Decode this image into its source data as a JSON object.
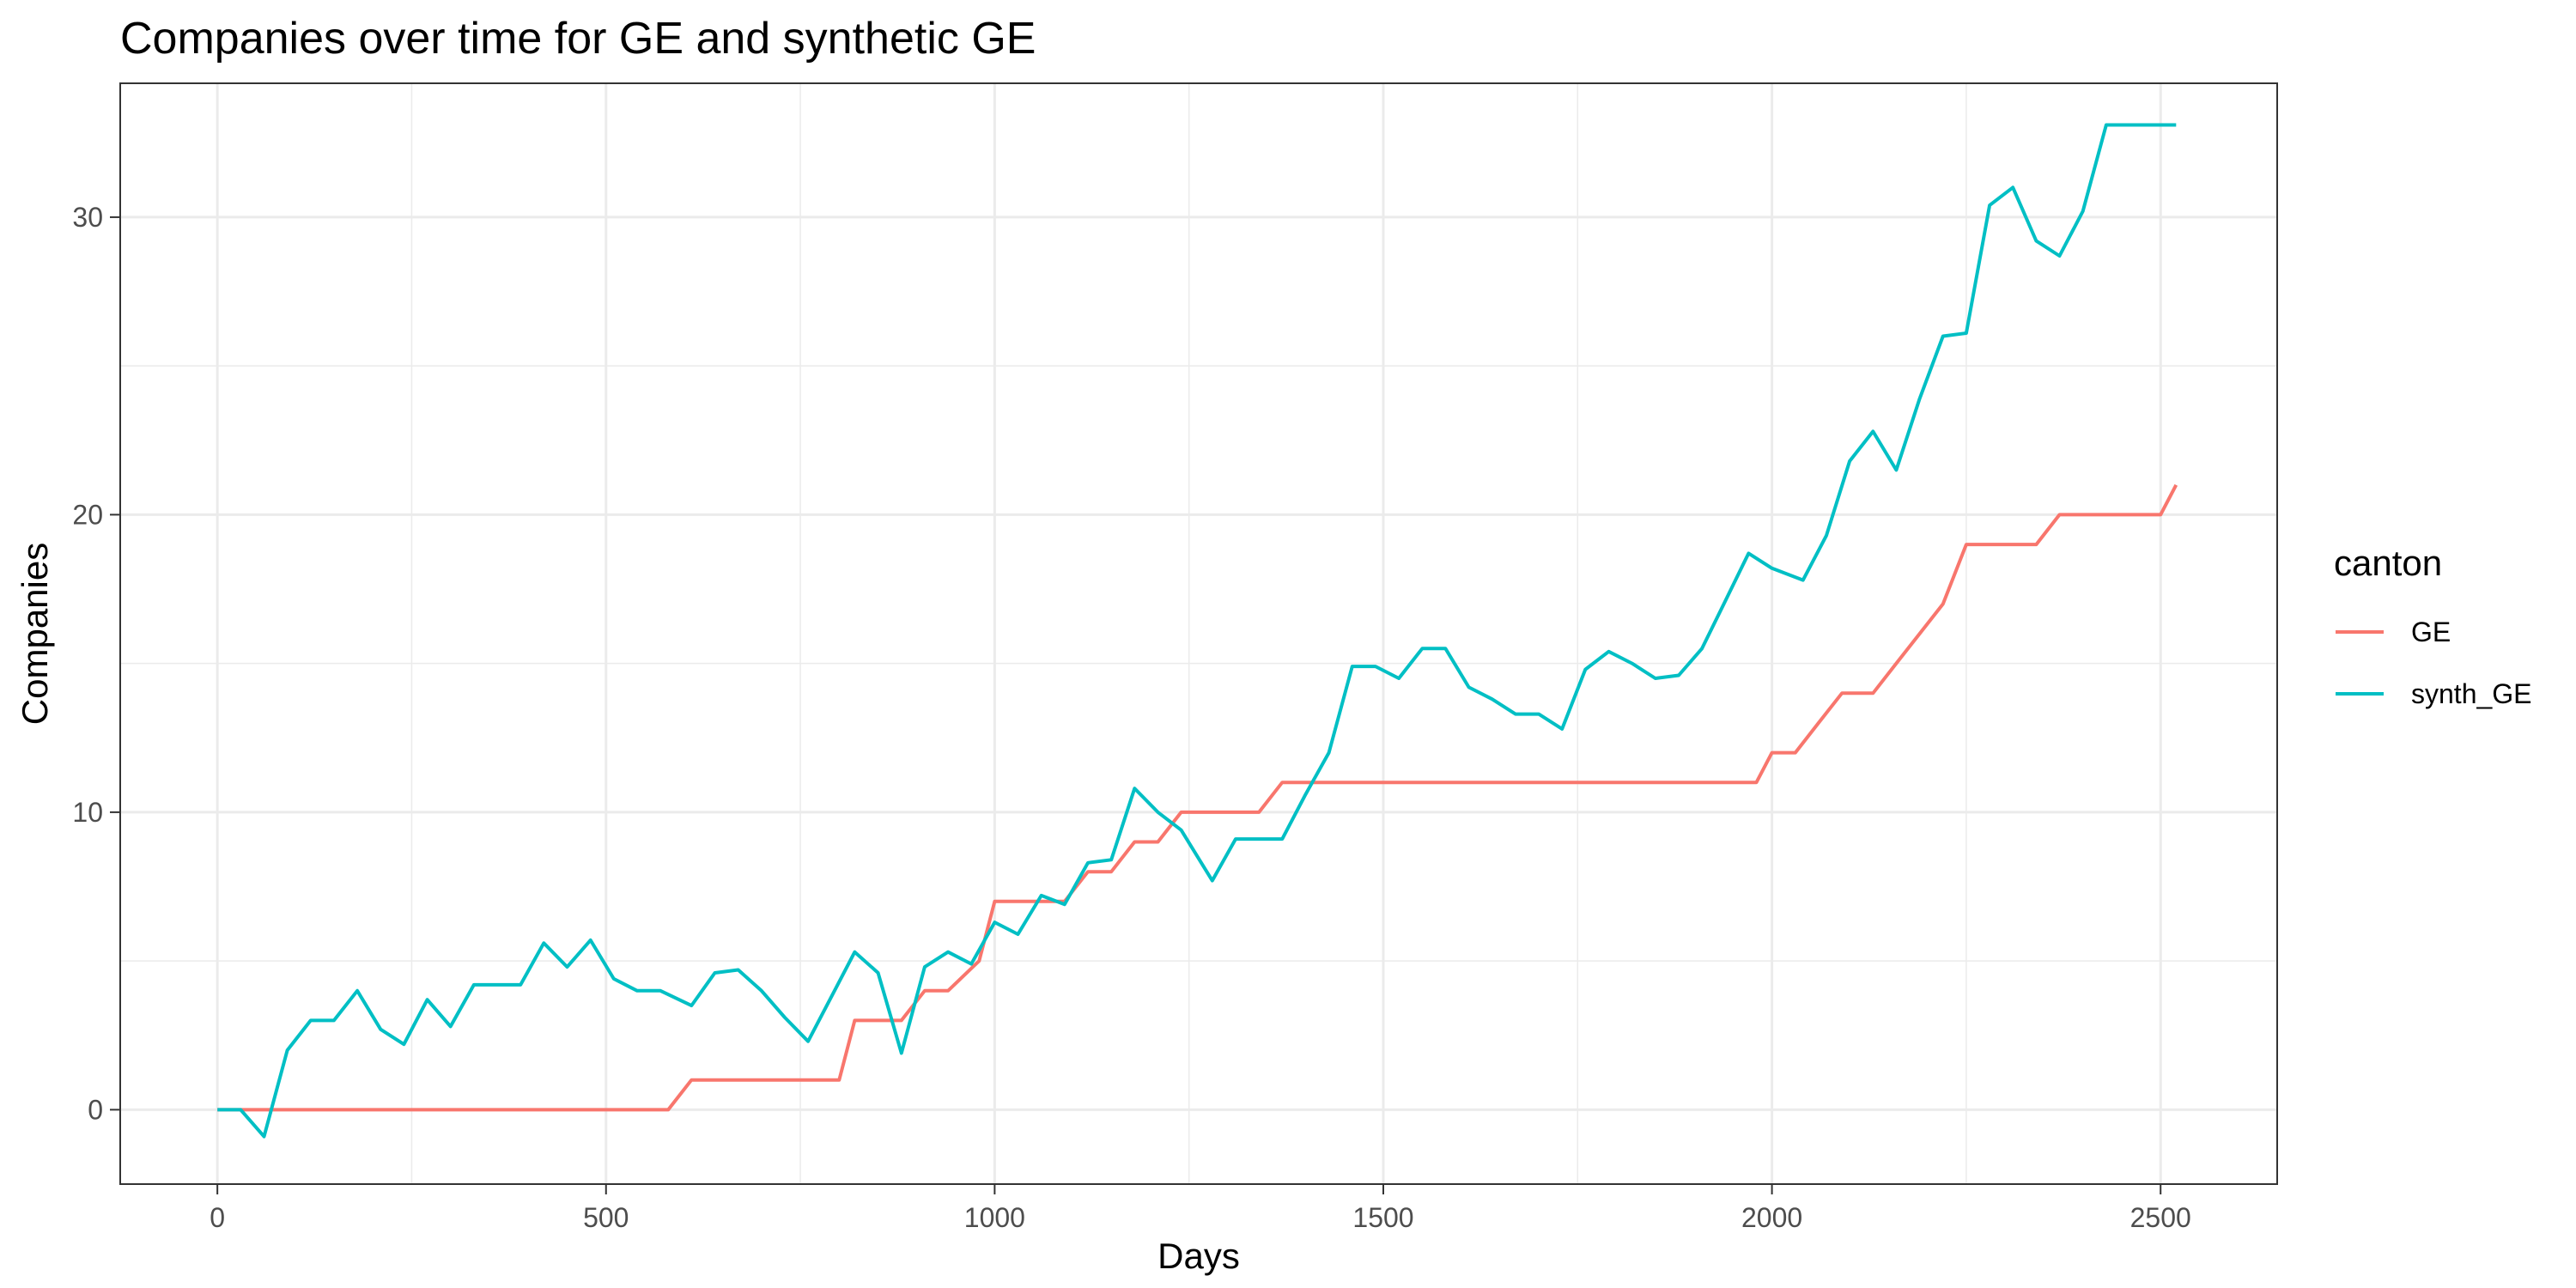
{
  "chart_data": {
    "type": "line",
    "title": "Companies over time for GE and synthetic GE",
    "xlabel": "Days",
    "ylabel": "Companies",
    "xlim": [
      -125,
      2650
    ],
    "ylim": [
      -2.5,
      34.5
    ],
    "xticks": [
      0,
      500,
      1000,
      1500,
      2000,
      2500
    ],
    "yticks": [
      0,
      10,
      20,
      30
    ],
    "grid": true,
    "legend": {
      "title": "canton",
      "position": "right"
    },
    "series": [
      {
        "name": "GE",
        "color": "#F8766D",
        "x": [
          0,
          30,
          60,
          90,
          120,
          150,
          180,
          210,
          240,
          270,
          300,
          330,
          360,
          390,
          420,
          450,
          480,
          510,
          540,
          570,
          580,
          610,
          640,
          670,
          700,
          730,
          760,
          790,
          800,
          820,
          850,
          880,
          910,
          940,
          980,
          1000,
          1030,
          1060,
          1090,
          1120,
          1150,
          1180,
          1210,
          1240,
          1250,
          1280,
          1310,
          1340,
          1370,
          1400,
          1430,
          1460,
          1490,
          1520,
          1550,
          1580,
          1610,
          1640,
          1670,
          1700,
          1730,
          1760,
          1790,
          1820,
          1850,
          1880,
          1910,
          1940,
          1970,
          1980,
          2000,
          2030,
          2060,
          2090,
          2100,
          2130,
          2160,
          2190,
          2220,
          2250,
          2280,
          2310,
          2340,
          2370,
          2400,
          2430,
          2460,
          2490,
          2500,
          2520
        ],
        "y": [
          0,
          0,
          0,
          0,
          0,
          0,
          0,
          0,
          0,
          0,
          0,
          0,
          0,
          0,
          0,
          0,
          0,
          0,
          0,
          0,
          0,
          1,
          1,
          1,
          1,
          1,
          1,
          1,
          1,
          3,
          3,
          3,
          4,
          4,
          5,
          7,
          7,
          7,
          7,
          8,
          8,
          9,
          9,
          10,
          10,
          10,
          10,
          10,
          11,
          11,
          11,
          11,
          11,
          11,
          11,
          11,
          11,
          11,
          11,
          11,
          11,
          11,
          11,
          11,
          11,
          11,
          11,
          11,
          11,
          11,
          12,
          12,
          13,
          14,
          14,
          14,
          15,
          16,
          17,
          19,
          19,
          19,
          19,
          20,
          20,
          20,
          20,
          20,
          20,
          21
        ]
      },
      {
        "name": "synth_GE",
        "color": "#00BFC4",
        "x": [
          0,
          30,
          60,
          90,
          120,
          150,
          180,
          210,
          240,
          270,
          300,
          330,
          360,
          390,
          420,
          450,
          480,
          510,
          540,
          570,
          610,
          640,
          670,
          700,
          730,
          760,
          790,
          820,
          850,
          880,
          910,
          940,
          970,
          1000,
          1030,
          1060,
          1090,
          1120,
          1150,
          1180,
          1210,
          1240,
          1280,
          1310,
          1340,
          1370,
          1400,
          1430,
          1460,
          1490,
          1520,
          1550,
          1580,
          1610,
          1640,
          1670,
          1700,
          1730,
          1760,
          1790,
          1820,
          1850,
          1880,
          1910,
          1940,
          1970,
          2000,
          2040,
          2070,
          2100,
          2130,
          2160,
          2190,
          2220,
          2250,
          2280,
          2310,
          2340,
          2370,
          2400,
          2430,
          2460,
          2490,
          2520
        ],
        "y": [
          0,
          0,
          -0.9,
          2,
          3,
          3,
          4,
          2.7,
          2.2,
          3.7,
          2.8,
          4.2,
          4.2,
          4.2,
          5.6,
          4.8,
          5.7,
          4.4,
          4,
          4,
          3.5,
          4.6,
          4.7,
          4,
          3.1,
          2.3,
          3.8,
          5.3,
          4.6,
          1.9,
          4.8,
          5.3,
          4.9,
          6.3,
          5.9,
          7.2,
          6.9,
          8.3,
          8.4,
          10.8,
          10,
          9.4,
          7.7,
          9.1,
          9.1,
          9.1,
          10.6,
          12,
          14.9,
          14.9,
          14.5,
          15.5,
          15.5,
          14.2,
          13.8,
          13.3,
          13.3,
          12.8,
          14.8,
          15.4,
          15,
          14.5,
          14.6,
          15.5,
          17.1,
          18.7,
          18.2,
          17.8,
          19.3,
          21.8,
          22.8,
          21.5,
          23.9,
          26,
          26.1,
          30.4,
          31,
          29.2,
          28.7,
          30.2,
          33.1,
          33.1,
          33.1,
          33.1
        ]
      }
    ]
  }
}
